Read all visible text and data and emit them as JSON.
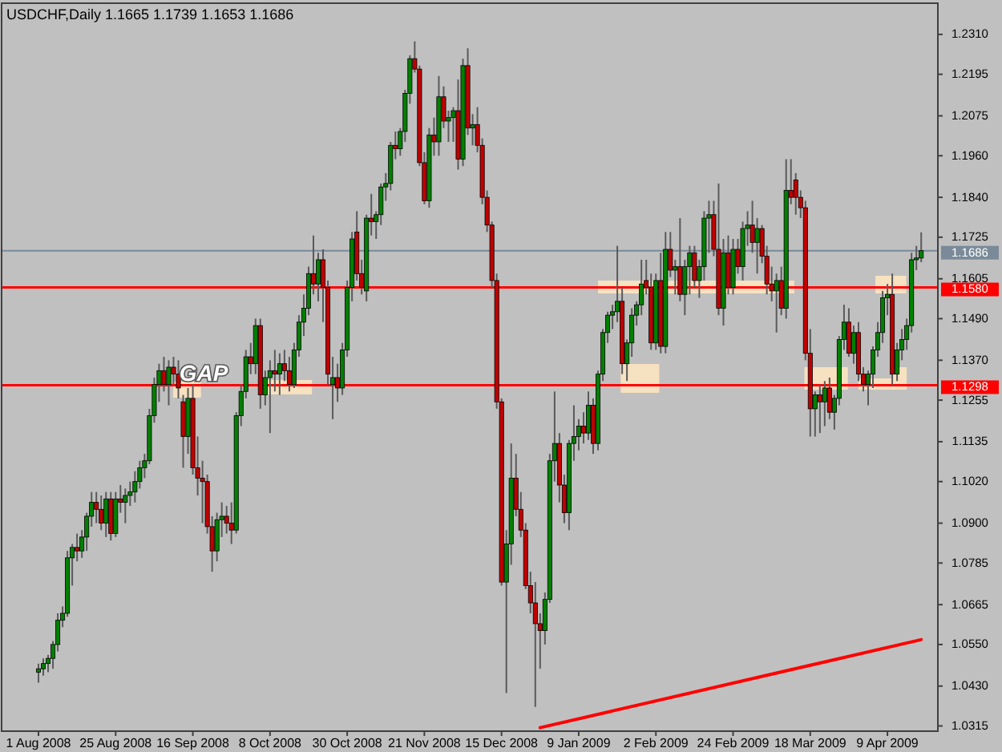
{
  "chart_data": {
    "type": "candlestick",
    "title": "USDCHF,Daily  1.1665 1.1739 1.1653 1.1686",
    "categories": [
      "1 Aug 2008",
      null,
      null,
      null,
      null,
      null,
      null,
      null,
      null,
      null,
      null,
      null,
      null,
      null,
      null,
      null,
      "25 Aug 2008",
      null,
      null,
      null,
      null,
      null,
      null,
      null,
      null,
      null,
      null,
      null,
      null,
      null,
      null,
      null,
      "16 Sep 2008",
      null,
      null,
      null,
      null,
      null,
      null,
      null,
      null,
      null,
      null,
      null,
      null,
      null,
      null,
      null,
      "8 Oct 2008",
      null,
      null,
      null,
      null,
      null,
      null,
      null,
      null,
      null,
      null,
      null,
      null,
      null,
      null,
      null,
      "30 Oct 2008",
      null,
      null,
      null,
      null,
      null,
      null,
      null,
      null,
      null,
      null,
      null,
      null,
      null,
      null,
      null,
      "21 Nov 2008",
      null,
      null,
      null,
      null,
      null,
      null,
      null,
      null,
      null,
      null,
      null,
      null,
      null,
      null,
      null,
      "15 Dec 2008",
      null,
      null,
      null,
      null,
      null,
      null,
      null,
      null,
      null,
      null,
      null,
      null,
      null,
      null,
      null,
      "9 Jan 2009",
      null,
      null,
      null,
      null,
      null,
      null,
      null,
      null,
      null,
      null,
      null,
      null,
      null,
      null,
      null,
      "2 Feb 2009",
      null,
      null,
      null,
      null,
      null,
      null,
      null,
      null,
      null,
      null,
      null,
      null,
      null,
      null,
      null,
      "24 Feb 2009",
      null,
      null,
      null,
      null,
      null,
      null,
      null,
      null,
      null,
      null,
      null,
      null,
      null,
      null,
      null,
      "18 Mar 2009",
      null,
      null,
      null,
      null,
      null,
      null,
      null,
      null,
      null,
      null,
      null,
      null,
      null,
      null,
      null,
      "9 Apr 2009",
      null,
      null,
      null,
      null,
      null,
      null,
      null
    ],
    "ohlc": [
      [
        1.047,
        1.0495,
        1.044,
        1.048
      ],
      [
        1.048,
        1.051,
        1.046,
        1.0495
      ],
      [
        1.0495,
        1.052,
        1.047,
        1.051
      ],
      [
        1.051,
        1.056,
        1.048,
        1.055
      ],
      [
        1.055,
        1.064,
        1.053,
        1.062
      ],
      [
        1.062,
        1.066,
        1.06,
        1.064
      ],
      [
        1.064,
        1.082,
        1.063,
        1.08
      ],
      [
        1.08,
        1.084,
        1.072,
        1.083
      ],
      [
        1.083,
        1.087,
        1.079,
        1.082
      ],
      [
        1.082,
        1.088,
        1.08,
        1.086
      ],
      [
        1.086,
        1.093,
        1.082,
        1.092
      ],
      [
        1.092,
        1.099,
        1.089,
        1.096
      ],
      [
        1.096,
        1.099,
        1.09,
        1.094
      ],
      [
        1.094,
        1.098,
        1.088,
        1.09
      ],
      [
        1.09,
        1.099,
        1.086,
        1.097
      ],
      [
        1.097,
        1.099,
        1.085,
        1.087
      ],
      [
        1.087,
        1.099,
        1.086,
        1.097
      ],
      [
        1.097,
        1.101,
        1.093,
        1.096
      ],
      [
        1.096,
        1.1,
        1.09,
        1.098
      ],
      [
        1.098,
        1.102,
        1.095,
        1.099
      ],
      [
        1.099,
        1.105,
        1.096,
        1.102
      ],
      [
        1.102,
        1.108,
        1.1,
        1.106
      ],
      [
        1.106,
        1.11,
        1.103,
        1.108
      ],
      [
        1.108,
        1.123,
        1.107,
        1.121
      ],
      [
        1.121,
        1.132,
        1.119,
        1.13
      ],
      [
        1.13,
        1.136,
        1.125,
        1.134
      ],
      [
        1.134,
        1.138,
        1.128,
        1.13
      ],
      [
        1.13,
        1.137,
        1.124,
        1.135
      ],
      [
        1.135,
        1.138,
        1.13,
        1.133
      ],
      [
        1.133,
        1.137,
        1.126,
        1.129
      ],
      [
        1.125,
        1.127,
        1.106,
        1.115
      ],
      [
        1.115,
        1.129,
        1.11,
        1.126
      ],
      [
        1.126,
        1.13,
        1.104,
        1.106
      ],
      [
        1.106,
        1.115,
        1.098,
        1.103
      ],
      [
        1.103,
        1.108,
        1.09,
        1.102
      ],
      [
        1.102,
        1.104,
        1.087,
        1.089
      ],
      [
        1.089,
        1.092,
        1.076,
        1.082
      ],
      [
        1.082,
        1.093,
        1.079,
        1.091
      ],
      [
        1.091,
        1.096,
        1.086,
        1.092
      ],
      [
        1.092,
        1.095,
        1.087,
        1.09
      ],
      [
        1.09,
        1.096,
        1.084,
        1.088
      ],
      [
        1.088,
        1.122,
        1.087,
        1.121
      ],
      [
        1.121,
        1.13,
        1.118,
        1.128
      ],
      [
        1.128,
        1.14,
        1.126,
        1.138
      ],
      [
        1.138,
        1.142,
        1.133,
        1.136
      ],
      [
        1.136,
        1.149,
        1.133,
        1.147
      ],
      [
        1.147,
        1.149,
        1.123,
        1.127
      ],
      [
        1.127,
        1.134,
        1.124,
        1.132
      ],
      [
        1.132,
        1.137,
        1.116,
        1.134
      ],
      [
        1.134,
        1.14,
        1.128,
        1.133
      ],
      [
        1.133,
        1.139,
        1.127,
        1.136
      ],
      [
        1.136,
        1.14,
        1.131,
        1.134
      ],
      [
        1.134,
        1.138,
        1.128,
        1.13
      ],
      [
        1.13,
        1.142,
        1.129,
        1.14
      ],
      [
        1.14,
        1.15,
        1.138,
        1.148
      ],
      [
        1.148,
        1.156,
        1.144,
        1.152
      ],
      [
        1.152,
        1.164,
        1.15,
        1.162
      ],
      [
        1.162,
        1.173,
        1.156,
        1.159
      ],
      [
        1.159,
        1.168,
        1.154,
        1.166
      ],
      [
        1.166,
        1.169,
        1.148,
        1.158
      ],
      [
        1.158,
        1.16,
        1.13,
        1.133
      ],
      [
        1.13,
        1.138,
        1.12,
        1.132
      ],
      [
        1.132,
        1.136,
        1.125,
        1.129
      ],
      [
        1.129,
        1.142,
        1.127,
        1.14
      ],
      [
        1.14,
        1.16,
        1.138,
        1.158
      ],
      [
        1.158,
        1.174,
        1.154,
        1.172
      ],
      [
        1.174,
        1.18,
        1.16,
        1.162
      ],
      [
        1.162,
        1.166,
        1.156,
        1.158
      ],
      [
        1.157,
        1.179,
        1.154,
        1.178
      ],
      [
        1.178,
        1.185,
        1.173,
        1.177
      ],
      [
        1.177,
        1.18,
        1.172,
        1.179
      ],
      [
        1.179,
        1.188,
        1.176,
        1.187
      ],
      [
        1.187,
        1.191,
        1.183,
        1.188
      ],
      [
        1.188,
        1.2,
        1.186,
        1.199
      ],
      [
        1.199,
        1.203,
        1.195,
        1.198
      ],
      [
        1.198,
        1.204,
        1.196,
        1.203
      ],
      [
        1.203,
        1.215,
        1.2,
        1.214
      ],
      [
        1.214,
        1.225,
        1.211,
        1.224
      ],
      [
        1.224,
        1.229,
        1.22,
        1.221
      ],
      [
        1.221,
        1.222,
        1.193,
        1.194
      ],
      [
        1.194,
        1.197,
        1.182,
        1.183
      ],
      [
        1.183,
        1.204,
        1.181,
        1.202
      ],
      [
        1.202,
        1.207,
        1.196,
        1.2
      ],
      [
        1.2,
        1.219,
        1.196,
        1.213
      ],
      [
        1.213,
        1.216,
        1.204,
        1.206
      ],
      [
        1.206,
        1.209,
        1.2,
        1.207
      ],
      [
        1.207,
        1.21,
        1.2,
        1.209
      ],
      [
        1.209,
        1.218,
        1.192,
        1.195
      ],
      [
        1.195,
        1.224,
        1.193,
        1.222
      ],
      [
        1.222,
        1.227,
        1.202,
        1.204
      ],
      [
        1.204,
        1.208,
        1.199,
        1.205
      ],
      [
        1.205,
        1.21,
        1.197,
        1.199
      ],
      [
        1.199,
        1.201,
        1.182,
        1.184
      ],
      [
        1.184,
        1.186,
        1.174,
        1.176
      ],
      [
        1.176,
        1.177,
        1.158,
        1.16
      ],
      [
        1.16,
        1.162,
        1.123,
        1.125
      ],
      [
        1.125,
        1.126,
        1.072,
        1.073
      ],
      [
        1.073,
        1.088,
        1.041,
        1.084
      ],
      [
        1.084,
        1.113,
        1.078,
        1.103
      ],
      [
        1.103,
        1.11,
        1.092,
        1.094
      ],
      [
        1.094,
        1.099,
        1.086,
        1.088
      ],
      [
        1.088,
        1.09,
        1.071,
        1.072
      ],
      [
        1.072,
        1.076,
        1.064,
        1.067
      ],
      [
        1.067,
        1.073,
        1.037,
        1.061
      ],
      [
        1.061,
        1.064,
        1.048,
        1.059
      ],
      [
        1.059,
        1.07,
        1.055,
        1.068
      ],
      [
        1.068,
        1.11,
        1.067,
        1.108
      ],
      [
        1.108,
        1.128,
        1.102,
        1.113
      ],
      [
        1.113,
        1.116,
        1.096,
        1.101
      ],
      [
        1.101,
        1.104,
        1.09,
        1.093
      ],
      [
        1.093,
        1.114,
        1.088,
        1.113
      ],
      [
        1.113,
        1.124,
        1.108,
        1.115
      ],
      [
        1.115,
        1.12,
        1.111,
        1.118
      ],
      [
        1.118,
        1.122,
        1.113,
        1.116
      ],
      [
        1.116,
        1.128,
        1.114,
        1.124
      ],
      [
        1.124,
        1.126,
        1.11,
        1.113
      ],
      [
        1.113,
        1.134,
        1.111,
        1.133
      ],
      [
        1.133,
        1.146,
        1.131,
        1.145
      ],
      [
        1.145,
        1.151,
        1.142,
        1.15
      ],
      [
        1.15,
        1.153,
        1.146,
        1.151
      ],
      [
        1.151,
        1.17,
        1.148,
        1.154
      ],
      [
        1.154,
        1.158,
        1.133,
        1.136
      ],
      [
        1.136,
        1.143,
        1.131,
        1.142
      ],
      [
        1.142,
        1.152,
        1.138,
        1.15
      ],
      [
        1.15,
        1.154,
        1.147,
        1.153
      ],
      [
        1.153,
        1.166,
        1.15,
        1.159
      ],
      [
        1.16,
        1.166,
        1.156,
        1.158
      ],
      [
        1.158,
        1.162,
        1.14,
        1.142
      ],
      [
        1.142,
        1.162,
        1.14,
        1.16
      ],
      [
        1.16,
        1.168,
        1.139,
        1.141
      ],
      [
        1.141,
        1.174,
        1.139,
        1.169
      ],
      [
        1.169,
        1.174,
        1.161,
        1.163
      ],
      [
        1.163,
        1.166,
        1.156,
        1.164
      ],
      [
        1.164,
        1.178,
        1.154,
        1.156
      ],
      [
        1.156,
        1.166,
        1.15,
        1.164
      ],
      [
        1.164,
        1.17,
        1.156,
        1.168
      ],
      [
        1.168,
        1.17,
        1.158,
        1.16
      ],
      [
        1.16,
        1.166,
        1.155,
        1.164
      ],
      [
        1.164,
        1.18,
        1.16,
        1.178
      ],
      [
        1.178,
        1.183,
        1.168,
        1.179
      ],
      [
        1.179,
        1.183,
        1.167,
        1.169
      ],
      [
        1.169,
        1.188,
        1.15,
        1.152
      ],
      [
        1.152,
        1.172,
        1.147,
        1.168
      ],
      [
        1.168,
        1.173,
        1.156,
        1.158
      ],
      [
        1.158,
        1.172,
        1.156,
        1.169
      ],
      [
        1.169,
        1.172,
        1.162,
        1.164
      ],
      [
        1.164,
        1.177,
        1.16,
        1.175
      ],
      [
        1.175,
        1.18,
        1.17,
        1.176
      ],
      [
        1.176,
        1.183,
        1.168,
        1.171
      ],
      [
        1.171,
        1.178,
        1.162,
        1.175
      ],
      [
        1.175,
        1.176,
        1.165,
        1.167
      ],
      [
        1.167,
        1.17,
        1.156,
        1.159
      ],
      [
        1.159,
        1.164,
        1.154,
        1.157
      ],
      [
        1.157,
        1.162,
        1.145,
        1.16
      ],
      [
        1.16,
        1.164,
        1.15,
        1.152
      ],
      [
        1.152,
        1.195,
        1.149,
        1.186
      ],
      [
        1.186,
        1.195,
        1.182,
        1.184
      ],
      [
        1.189,
        1.191,
        1.179,
        1.184
      ],
      [
        1.184,
        1.186,
        1.178,
        1.181
      ],
      [
        1.181,
        1.183,
        1.137,
        1.139
      ],
      [
        1.139,
        1.146,
        1.115,
        1.123
      ],
      [
        1.123,
        1.128,
        1.115,
        1.127
      ],
      [
        1.127,
        1.13,
        1.116,
        1.125
      ],
      [
        1.125,
        1.131,
        1.118,
        1.129
      ],
      [
        1.129,
        1.132,
        1.12,
        1.122
      ],
      [
        1.122,
        1.127,
        1.117,
        1.126
      ],
      [
        1.126,
        1.144,
        1.124,
        1.143
      ],
      [
        1.143,
        1.153,
        1.14,
        1.148
      ],
      [
        1.148,
        1.152,
        1.138,
        1.139
      ],
      [
        1.139,
        1.147,
        1.136,
        1.145
      ],
      [
        1.145,
        1.148,
        1.131,
        1.133
      ],
      [
        1.133,
        1.135,
        1.128,
        1.13
      ],
      [
        1.13,
        1.134,
        1.124,
        1.133
      ],
      [
        1.133,
        1.141,
        1.129,
        1.14
      ],
      [
        1.14,
        1.148,
        1.138,
        1.145
      ],
      [
        1.145,
        1.157,
        1.142,
        1.155
      ],
      [
        1.155,
        1.159,
        1.15,
        1.156
      ],
      [
        1.156,
        1.162,
        1.13,
        1.133
      ],
      [
        1.133,
        1.142,
        1.131,
        1.14
      ],
      [
        1.14,
        1.146,
        1.137,
        1.143
      ],
      [
        1.143,
        1.149,
        1.14,
        1.147
      ],
      [
        1.147,
        1.168,
        1.145,
        1.166
      ],
      [
        1.166,
        1.17,
        1.163,
        1.1665
      ],
      [
        1.1665,
        1.1739,
        1.1653,
        1.1686
      ]
    ],
    "colors": [
      "#008000",
      "#008000",
      "#008000",
      "#008000",
      "#008000",
      "#008000",
      "#008000",
      "#008000",
      "#c00000",
      "#008000",
      "#008000",
      "#008000",
      "#c00000",
      "#c00000",
      "#008000",
      "#c00000",
      "#008000",
      "#c00000",
      "#008000",
      "#008000",
      "#008000",
      "#008000",
      "#008000",
      "#008000",
      "#008000",
      "#008000",
      "#c00000",
      "#008000",
      "#c00000",
      "#c00000",
      "#c00000",
      "#008000",
      "#c00000",
      "#c00000",
      "#c00000",
      "#c00000",
      "#c00000",
      "#008000",
      "#008000",
      "#c00000",
      "#c00000",
      "#008000",
      "#008000",
      "#008000",
      "#c00000",
      "#008000",
      "#c00000",
      "#008000",
      "#008000",
      "#c00000",
      "#008000",
      "#c00000",
      "#c00000",
      "#008000",
      "#008000",
      "#008000",
      "#008000",
      "#c00000",
      "#008000",
      "#c00000",
      "#c00000",
      "#008000",
      "#c00000",
      "#008000",
      "#008000",
      "#008000",
      "#c00000",
      "#c00000",
      "#008000",
      "#c00000",
      "#008000",
      "#008000",
      "#008000",
      "#008000",
      "#c00000",
      "#008000",
      "#008000",
      "#008000",
      "#c00000",
      "#c00000",
      "#c00000",
      "#008000",
      "#c00000",
      "#008000",
      "#c00000",
      "#008000",
      "#008000",
      "#c00000",
      "#008000",
      "#c00000",
      "#008000",
      "#c00000",
      "#c00000",
      "#c00000",
      "#c00000",
      "#c00000",
      "#c00000",
      "#008000",
      "#008000",
      "#c00000",
      "#c00000",
      "#c00000",
      "#c00000",
      "#c00000",
      "#c00000",
      "#008000",
      "#008000",
      "#008000",
      "#c00000",
      "#c00000",
      "#008000",
      "#008000",
      "#008000",
      "#c00000",
      "#008000",
      "#c00000",
      "#008000",
      "#008000",
      "#008000",
      "#008000",
      "#008000",
      "#c00000",
      "#008000",
      "#008000",
      "#008000",
      "#008000",
      "#c00000",
      "#c00000",
      "#008000",
      "#c00000",
      "#008000",
      "#c00000",
      "#008000",
      "#c00000",
      "#008000",
      "#008000",
      "#c00000",
      "#008000",
      "#008000",
      "#008000",
      "#c00000",
      "#c00000",
      "#008000",
      "#c00000",
      "#008000",
      "#c00000",
      "#008000",
      "#008000",
      "#c00000",
      "#008000",
      "#c00000",
      "#c00000",
      "#c00000",
      "#008000",
      "#c00000",
      "#008000",
      "#c00000",
      "#c00000",
      "#c00000",
      "#c00000",
      "#c00000",
      "#008000",
      "#c00000",
      "#008000",
      "#c00000",
      "#008000",
      "#008000",
      "#008000",
      "#c00000",
      "#008000",
      "#c00000",
      "#c00000",
      "#008000",
      "#008000",
      "#008000",
      "#008000",
      "#008000",
      "#c00000",
      "#008000",
      "#008000",
      "#008000",
      "#008000",
      "#008000",
      "#008000"
    ],
    "series": [
      {
        "type": "line",
        "color": "#ff0000",
        "values": [
          null,
          null,
          null,
          null,
          null,
          null,
          null,
          null,
          null,
          null,
          null,
          null,
          null,
          null,
          null,
          null,
          null,
          null,
          null,
          null,
          null,
          null,
          null,
          null,
          null,
          null,
          null,
          null,
          null,
          null,
          null,
          null,
          null,
          null,
          null,
          null,
          null,
          null,
          null,
          null,
          null,
          null,
          null,
          null,
          null,
          null,
          null,
          null,
          null,
          null,
          null,
          null,
          null,
          null,
          null,
          null,
          null,
          null,
          null,
          null,
          null,
          null,
          null,
          null,
          null,
          null,
          null,
          null,
          null,
          null,
          null,
          null,
          null,
          null,
          null,
          null,
          null,
          null,
          null,
          null,
          null,
          null,
          null,
          null,
          null,
          null,
          null,
          null,
          null,
          null,
          null,
          null,
          null,
          null,
          null,
          null,
          null,
          null,
          null,
          null,
          null,
          null,
          null,
          null,
          1.031,
          null,
          null,
          null,
          null,
          null,
          null,
          null,
          null,
          null,
          null,
          null,
          null,
          null,
          null,
          null,
          null,
          null,
          null,
          null,
          null,
          null,
          null,
          null,
          null,
          null,
          null,
          null,
          null,
          null,
          null,
          null,
          null,
          null,
          null,
          null,
          null,
          null,
          null,
          null,
          null,
          null,
          null,
          null,
          null,
          null,
          null,
          null,
          null,
          null,
          null,
          null,
          null,
          null,
          null,
          null,
          null,
          null,
          null,
          null,
          null,
          null,
          null,
          null,
          null,
          null,
          null,
          null,
          null,
          null,
          null,
          null,
          null,
          null,
          null,
          null,
          null,
          null,
          null,
          1.0564
        ]
      }
    ],
    "ylim": [
      1.03,
      1.24
    ],
    "yticks": [
      {
        "value": 1.231,
        "label": "1.2310"
      },
      1.2195,
      1.2075,
      {
        "value": 1.196,
        "label": "1.1960"
      },
      {
        "value": 1.184,
        "label": "1.1840"
      },
      1.1725,
      1.1605,
      {
        "value": 1.149,
        "label": "1.1490"
      },
      {
        "value": 1.137,
        "label": "1.1370"
      },
      1.1255,
      1.1135,
      {
        "value": 1.102,
        "label": "1.1020"
      },
      {
        "value": 1.09,
        "label": "1.0900"
      },
      1.0785,
      1.0665,
      {
        "value": 1.055,
        "label": "1.0550"
      },
      {
        "value": 1.043,
        "label": "1.0430"
      },
      1.0315
    ],
    "ref_lines": [
      {
        "axis": "y",
        "value": 1.1686,
        "label": "1.1686",
        "color": "#7a8a99"
      },
      {
        "axis": "y",
        "value": 1.158,
        "label": "1.1580",
        "color": "#ff0000"
      },
      {
        "axis": "y",
        "value": 1.1298,
        "label": "1.1298",
        "color": "#ff0000"
      }
    ],
    "annotations": [
      {
        "text": "GAP",
        "y": 1.131
      }
    ]
  }
}
